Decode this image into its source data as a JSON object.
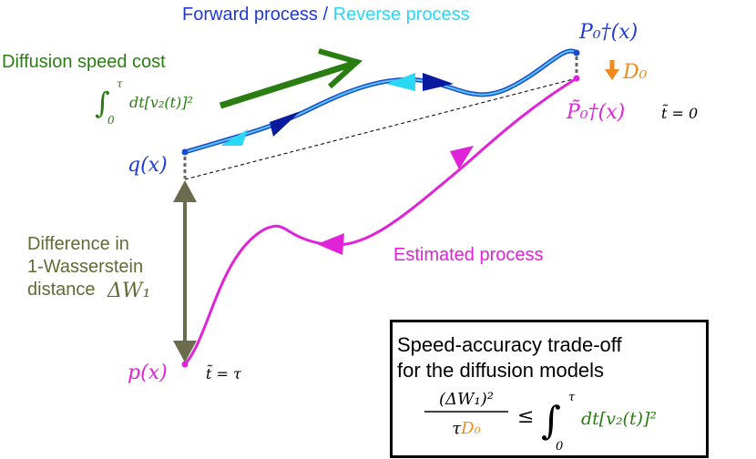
{
  "header": {
    "forward": "Forward process",
    "separator": "/",
    "reverse": "Reverse process"
  },
  "speed_cost": {
    "label": "Diffusion speed cost",
    "integral": "∫",
    "upper": "τ",
    "lower": "0",
    "integrand": "dt[v₂(t)]²"
  },
  "nodes": {
    "target": "P₀†(x)",
    "shift": "D₀",
    "estimated_start": "P̃₀†(x)",
    "estimated_start_time": "t̃ = 0",
    "q": "q(x)",
    "p": "p(x)",
    "p_time": "t̃ = τ"
  },
  "wasserstein": {
    "lines": [
      "Difference in",
      "1-Wasserstein",
      "distance"
    ],
    "symbol": "ΔW₁"
  },
  "estimated_label": "Estimated process",
  "box": {
    "lines": [
      "Speed-accuracy trade-off",
      "for the diffusion models"
    ],
    "numerator": "(ΔW₁)²",
    "denominator_tau": "τ",
    "denominator_d": "D₀",
    "relation": "≤",
    "integral": "∫",
    "upper": "τ",
    "lower": "0",
    "integrand": "dt[v₂(t)]²"
  }
}
